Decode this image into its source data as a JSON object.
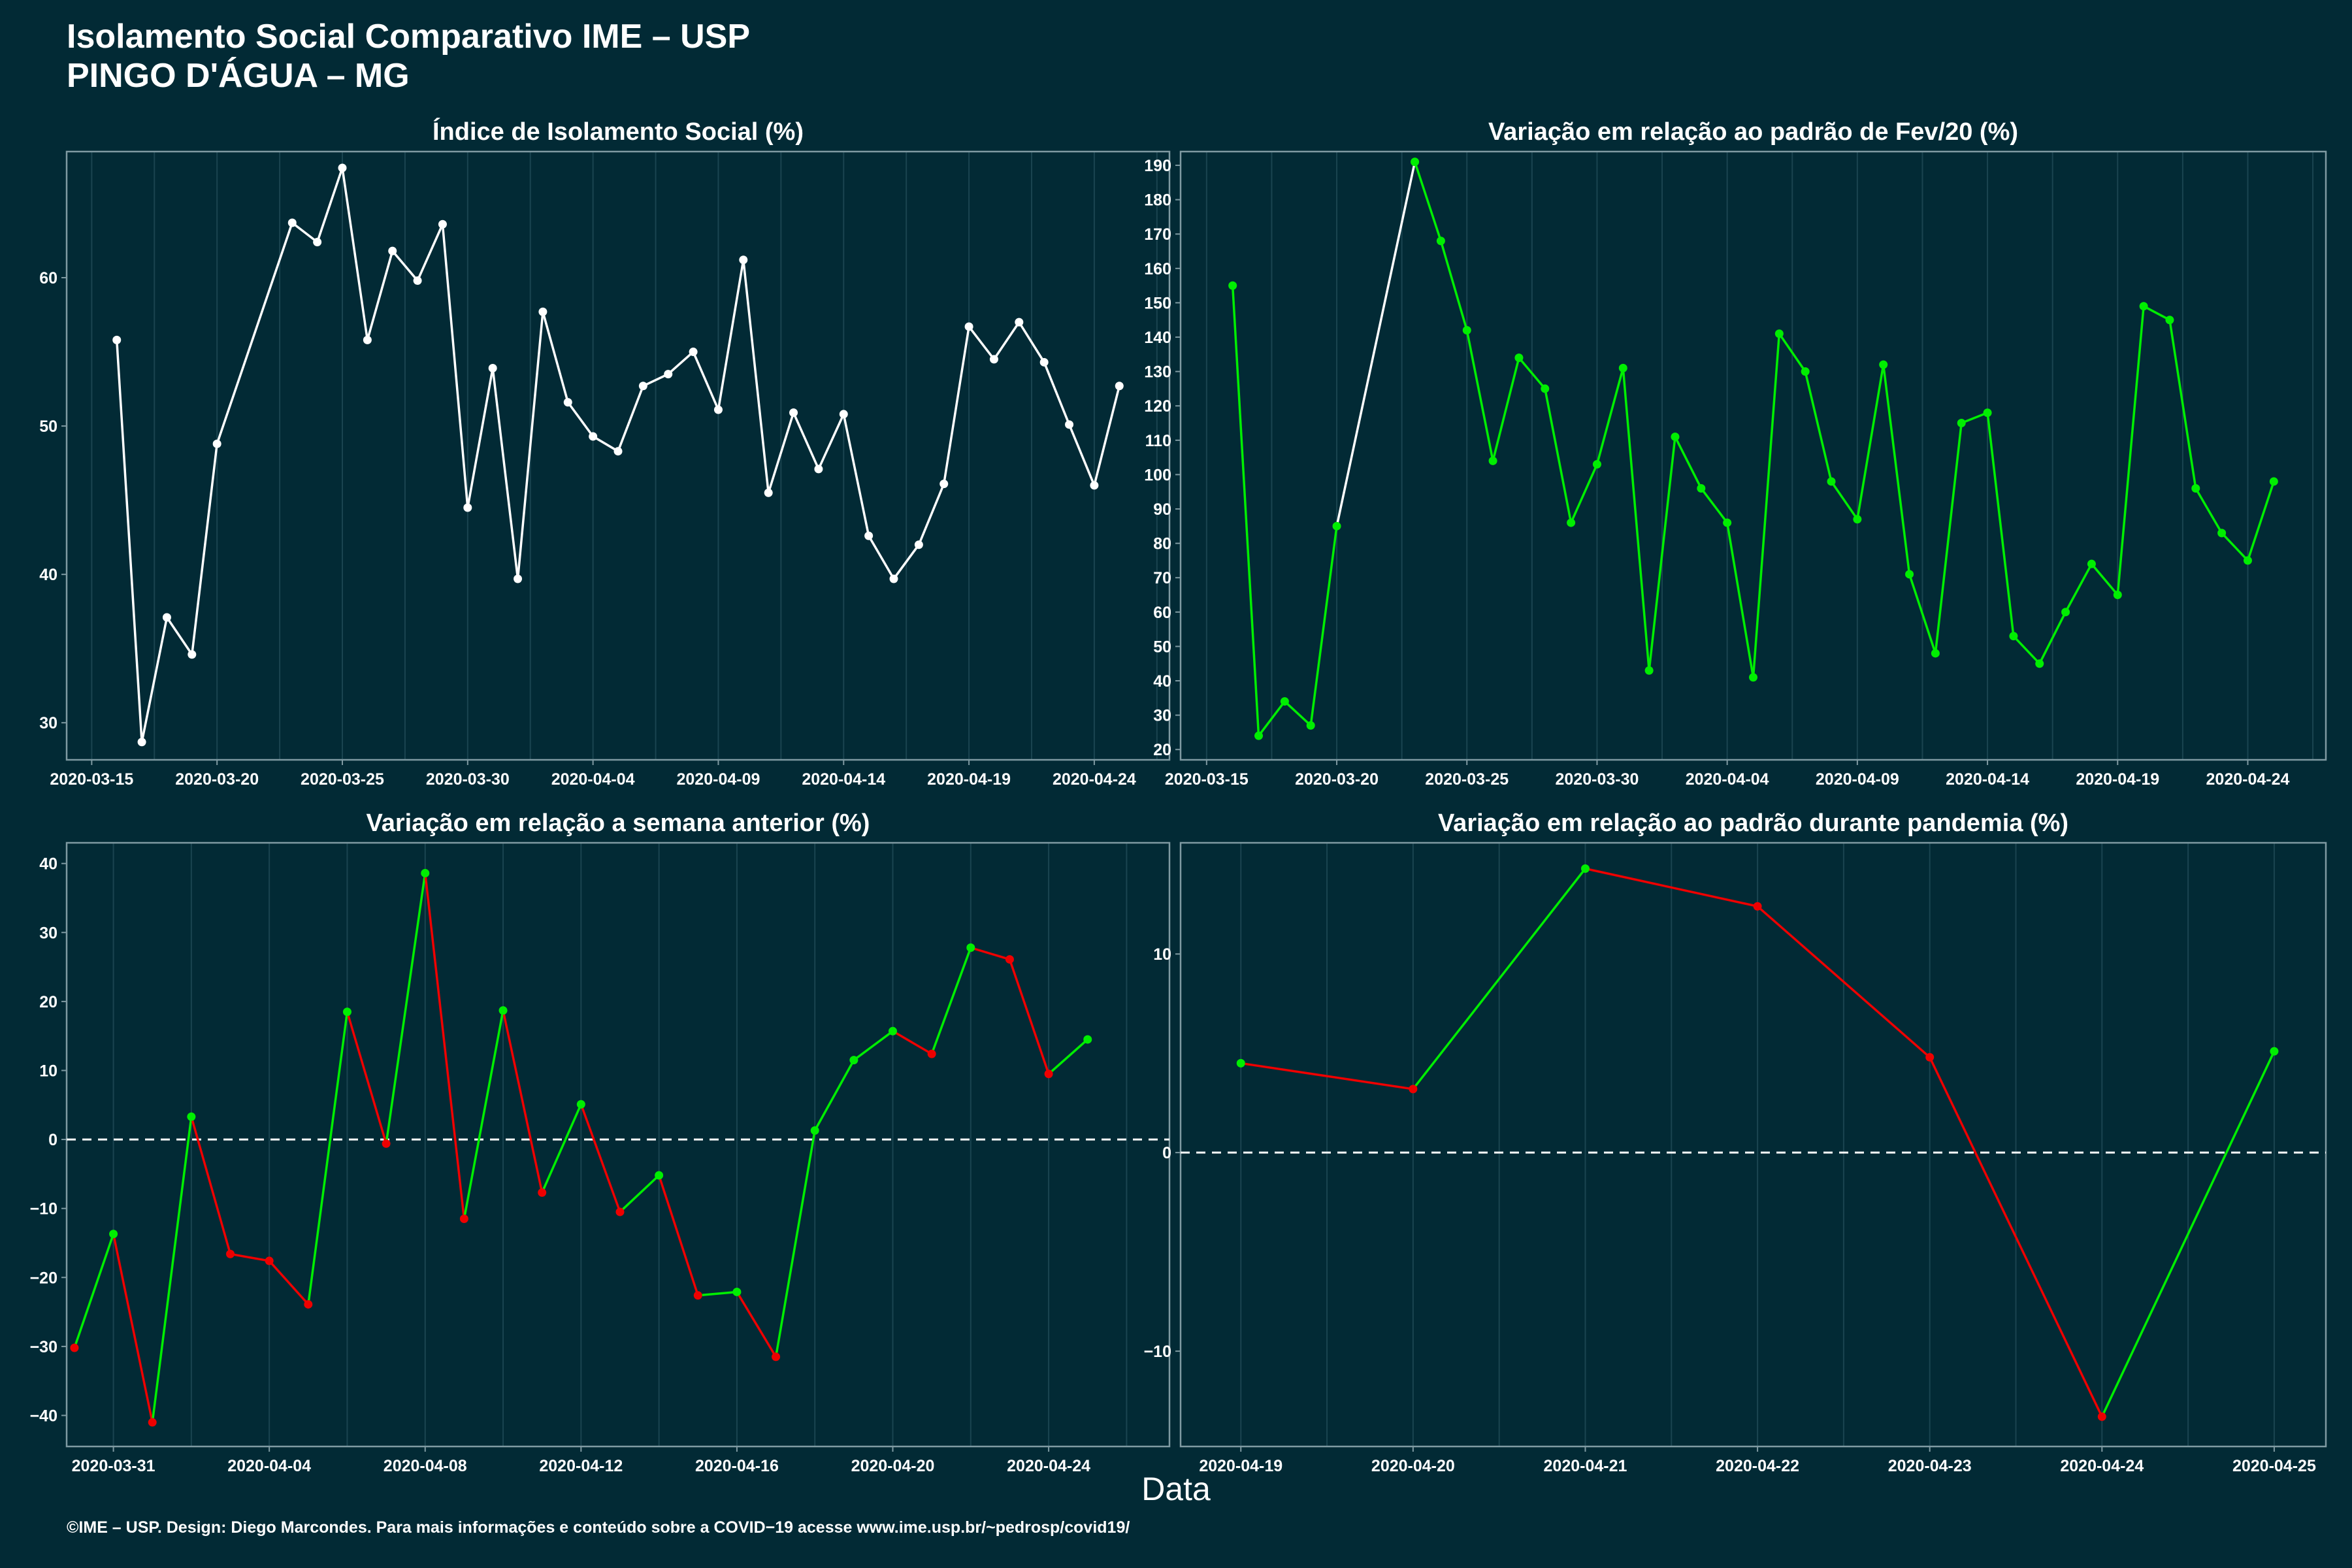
{
  "header": {
    "title_line1": "Isolamento Social Comparativo IME – USP",
    "title_line2": "PINGO D'ÁGUA – MG"
  },
  "x_axis_label": "Data",
  "footer": "©IME – USP. Design: Diego Marcondes. Para mais informações e conteúdo sobre a COVID−19 acesse www.ime.usp.br/~pedrosp/covid19/",
  "colors": {
    "background": "#022a35",
    "white": "#ffffff",
    "green": "#00ee00",
    "red": "#ee0000",
    "frame": "#7f9aa2",
    "grid": "#1a4450"
  },
  "chart_data": [
    {
      "type": "line",
      "title": "Índice de Isolamento Social (%)",
      "color_mode": "white",
      "baseline": false,
      "ylim": [
        27.5,
        68.5
      ],
      "yticks": [
        30,
        40,
        50,
        60
      ],
      "ytick_labels": [
        "30",
        "40",
        "50",
        "60"
      ],
      "xlim": [
        "2020-03-14",
        "2020-04-27"
      ],
      "xticks": [
        "2020-03-15",
        "2020-03-20",
        "2020-03-25",
        "2020-03-30",
        "2020-04-04",
        "2020-04-09",
        "2020-04-14",
        "2020-04-19",
        "2020-04-24"
      ],
      "x": [
        "2020-03-16",
        "2020-03-17",
        "2020-03-18",
        "2020-03-19",
        "2020-03-20",
        "2020-03-23",
        "2020-03-24",
        "2020-03-25",
        "2020-03-26",
        "2020-03-27",
        "2020-03-28",
        "2020-03-29",
        "2020-03-30",
        "2020-03-31",
        "2020-04-01",
        "2020-04-02",
        "2020-04-03",
        "2020-04-04",
        "2020-04-05",
        "2020-04-06",
        "2020-04-07",
        "2020-04-08",
        "2020-04-09",
        "2020-04-10",
        "2020-04-11",
        "2020-04-12",
        "2020-04-13",
        "2020-04-14",
        "2020-04-15",
        "2020-04-16",
        "2020-04-17",
        "2020-04-18",
        "2020-04-19",
        "2020-04-20",
        "2020-04-21",
        "2020-04-22",
        "2020-04-23",
        "2020-04-24",
        "2020-04-25"
      ],
      "values": [
        55.8,
        28.7,
        37.1,
        34.6,
        48.8,
        63.7,
        62.4,
        67.4,
        55.8,
        61.8,
        59.8,
        63.6,
        44.5,
        53.9,
        39.7,
        57.7,
        51.6,
        49.3,
        48.3,
        52.7,
        53.5,
        55.0,
        51.1,
        61.2,
        45.5,
        50.9,
        47.1,
        50.8,
        42.6,
        39.7,
        42.0,
        46.1,
        56.7,
        54.5,
        57.0,
        54.3,
        50.1,
        46.0,
        52.7
      ]
    },
    {
      "type": "line",
      "title": "Variação em relação ao padrão de Fev/20 (%)",
      "color_mode": "fev",
      "baseline": false,
      "ylim": [
        17,
        194
      ],
      "yticks": [
        20,
        30,
        40,
        50,
        60,
        70,
        80,
        90,
        100,
        110,
        120,
        130,
        140,
        150,
        160,
        170,
        180,
        190
      ],
      "ytick_labels": [
        "20",
        "30",
        "40",
        "50",
        "60",
        "70",
        "80",
        "90",
        "100",
        "110",
        "120",
        "130",
        "140",
        "150",
        "160",
        "170",
        "180",
        "190"
      ],
      "xlim": [
        "2020-03-14",
        "2020-04-27"
      ],
      "xticks": [
        "2020-03-15",
        "2020-03-20",
        "2020-03-25",
        "2020-03-30",
        "2020-04-04",
        "2020-04-09",
        "2020-04-14",
        "2020-04-19",
        "2020-04-24"
      ],
      "x": [
        "2020-03-16",
        "2020-03-17",
        "2020-03-18",
        "2020-03-19",
        "2020-03-20",
        "2020-03-23",
        "2020-03-24",
        "2020-03-25",
        "2020-03-26",
        "2020-03-27",
        "2020-03-28",
        "2020-03-29",
        "2020-03-30",
        "2020-03-31",
        "2020-04-01",
        "2020-04-02",
        "2020-04-03",
        "2020-04-04",
        "2020-04-05",
        "2020-04-06",
        "2020-04-07",
        "2020-04-08",
        "2020-04-09",
        "2020-04-10",
        "2020-04-11",
        "2020-04-12",
        "2020-04-13",
        "2020-04-14",
        "2020-04-15",
        "2020-04-16",
        "2020-04-17",
        "2020-04-18",
        "2020-04-19",
        "2020-04-20",
        "2020-04-21",
        "2020-04-22",
        "2020-04-23",
        "2020-04-24",
        "2020-04-25"
      ],
      "values": [
        155,
        24,
        34,
        27,
        85,
        191,
        168,
        142,
        104,
        134,
        125,
        86,
        103,
        131,
        43,
        111,
        96,
        86,
        41,
        141,
        130,
        98,
        87,
        132,
        71,
        48,
        115,
        118,
        53,
        45,
        60,
        74,
        65,
        149,
        145,
        96,
        83,
        75,
        98
      ]
    },
    {
      "type": "line",
      "title": "Variação em relação a semana anterior (%)",
      "color_mode": "sign",
      "baseline": true,
      "ylim": [
        -44.5,
        43
      ],
      "yticks": [
        -40,
        -30,
        -20,
        -10,
        0,
        10,
        20,
        30,
        40
      ],
      "ytick_labels": [
        "−40",
        "−30",
        "−20",
        "−10",
        "0",
        "10",
        "20",
        "30",
        "40"
      ],
      "xlim": [
        "2020-03-29.8",
        "2020-04-27.1"
      ],
      "xticks": [
        "2020-03-31",
        "2020-04-04",
        "2020-04-08",
        "2020-04-12",
        "2020-04-16",
        "2020-04-20",
        "2020-04-24"
      ],
      "x": [
        "2020-03-30",
        "2020-03-31",
        "2020-04-01",
        "2020-04-02",
        "2020-04-03",
        "2020-04-04",
        "2020-04-05",
        "2020-04-06",
        "2020-04-07",
        "2020-04-08",
        "2020-04-09",
        "2020-04-10",
        "2020-04-11",
        "2020-04-12",
        "2020-04-13",
        "2020-04-14",
        "2020-04-15",
        "2020-04-16",
        "2020-04-17",
        "2020-04-18",
        "2020-04-19",
        "2020-04-20",
        "2020-04-21",
        "2020-04-22",
        "2020-04-23",
        "2020-04-24",
        "2020-04-25"
      ],
      "values": [
        -30.2,
        -13.7,
        -41.0,
        3.3,
        -16.6,
        -17.6,
        -23.9,
        18.5,
        -0.6,
        38.6,
        -11.5,
        18.7,
        -7.7,
        5.1,
        -10.5,
        -5.2,
        -22.6,
        -22.1,
        -31.5,
        1.3,
        11.5,
        15.7,
        12.4,
        27.8,
        26.1,
        9.5,
        14.5
      ]
    },
    {
      "type": "line",
      "title": "Variação em relação ao padrão durante pandemia (%)",
      "color_mode": "sign",
      "baseline": true,
      "ylim": [
        -14.8,
        15.6
      ],
      "yticks": [
        -10,
        0,
        10
      ],
      "ytick_labels": [
        "−10",
        "0",
        "10"
      ],
      "xlim": [
        "2020-04-18.65",
        "2020-04-25.3"
      ],
      "xticks": [
        "2020-04-19",
        "2020-04-20",
        "2020-04-21",
        "2020-04-22",
        "2020-04-23",
        "2020-04-24",
        "2020-04-25"
      ],
      "x": [
        "2020-04-19",
        "2020-04-20",
        "2020-04-21",
        "2020-04-22",
        "2020-04-23",
        "2020-04-24",
        "2020-04-25"
      ],
      "values": [
        4.5,
        3.2,
        14.3,
        12.4,
        4.8,
        -13.3,
        5.1
      ]
    }
  ]
}
